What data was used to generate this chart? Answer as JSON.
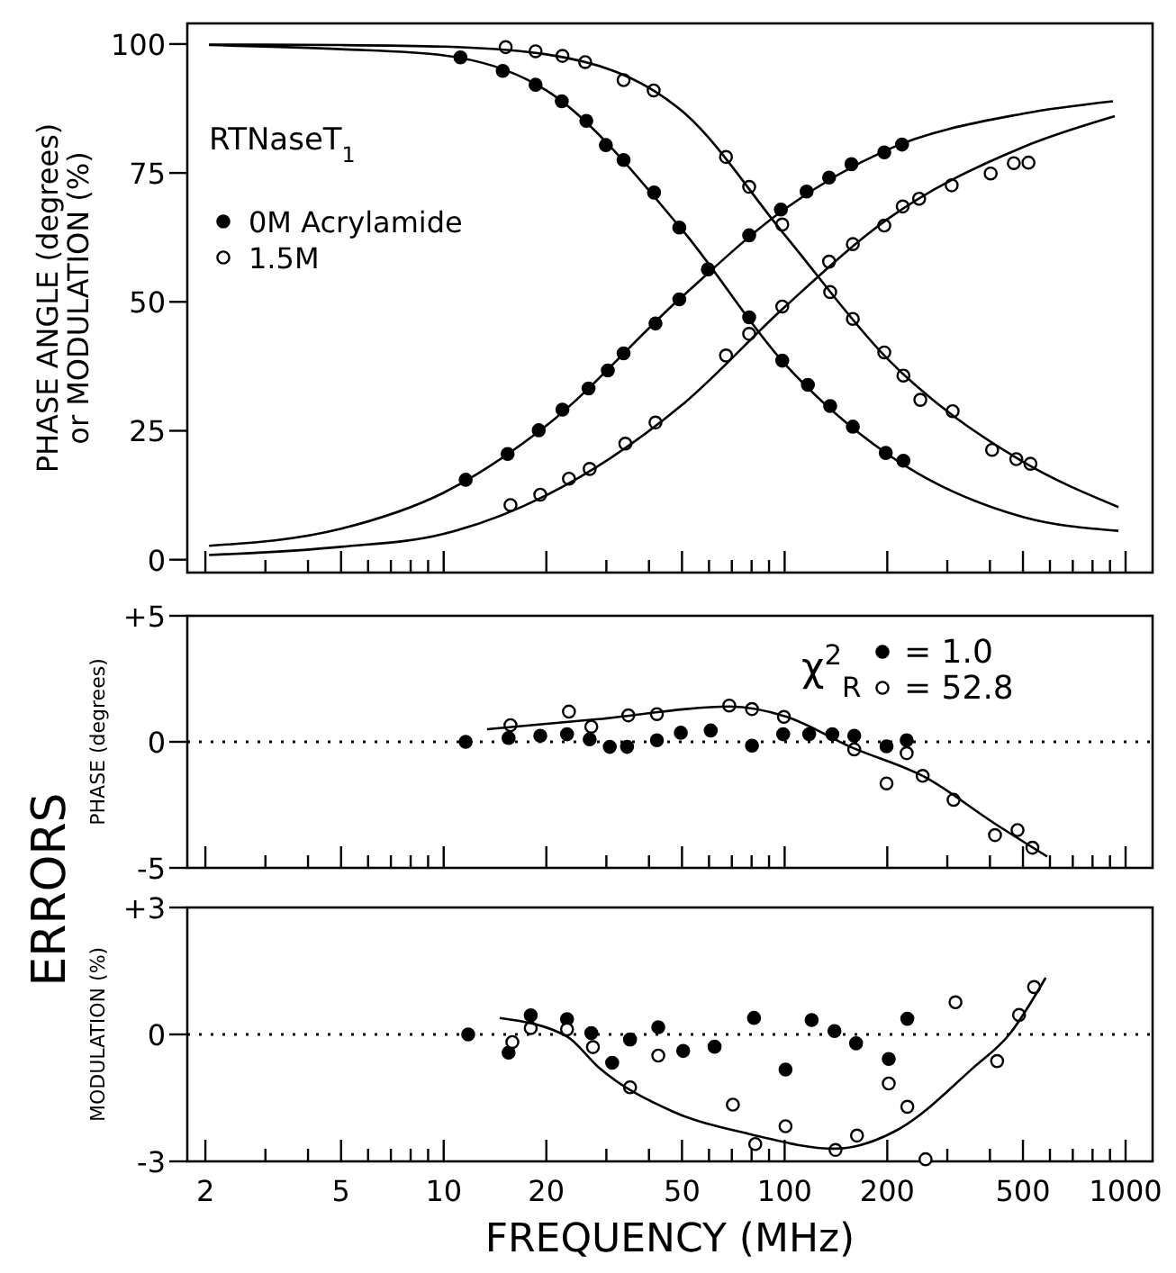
{
  "chart_data": [
    {
      "type": "scatter",
      "ylabel": "PHASE ANGLE (degrees)\nor MODULATION (%)",
      "legend_title": "RTNaseT$_{1}$",
      "legend": "left",
      "marker": "circle",
      "tick_labels": "y",
      "grid": false,
      "log": "x",
      "xlim": [
        1.77,
        1200
      ],
      "xticks": [
        2,
        {
          "value": 3,
          "label": null
        },
        {
          "value": 4,
          "label": null
        },
        5,
        {
          "value": 6,
          "label": null
        },
        {
          "value": 7,
          "label": null
        },
        {
          "value": 8,
          "label": null
        },
        {
          "value": 9,
          "label": null
        },
        10,
        20,
        {
          "value": 30,
          "label": null
        },
        {
          "value": 40,
          "label": null
        },
        50,
        {
          "value": 60,
          "label": null
        },
        {
          "value": 70,
          "label": null
        },
        {
          "value": 80,
          "label": null
        },
        {
          "value": 90,
          "label": null
        },
        100,
        200,
        {
          "value": 300,
          "label": null
        },
        {
          "value": 400,
          "label": null
        },
        500,
        {
          "value": 600,
          "label": null
        },
        {
          "value": 700,
          "label": null
        },
        {
          "value": 800,
          "label": null
        },
        {
          "value": 900,
          "label": null
        },
        1000
      ],
      "ylim": [
        -2.5,
        104
      ],
      "yticks": [
        0,
        25,
        50,
        75,
        100
      ],
      "series": [
        {
          "name": "0M Acrylamide",
          "color": "#000000",
          "x": [
            11.6,
            15.4,
            19,
            22.3,
            26.6,
            30.3,
            33.7,
            41.8,
            49.1,
            59.6,
            78.7,
            97.5,
            116,
            135,
            157,
            196,
            221
          ],
          "values": [
            15.5,
            20.5,
            25.1,
            29.1,
            33.2,
            36.7,
            40,
            45.8,
            50.5,
            56.3,
            62.9,
            67.9,
            71.4,
            74.1,
            76.7,
            79,
            80.5
          ]
        },
        {
          "color": "#000000",
          "x": [
            11.2,
            14.9,
            18.6,
            22.2,
            26.2,
            29.9,
            33.7,
            41.4,
            49.1,
            59.6,
            78.7,
            98.4,
            117,
            136,
            158.5,
            198,
            223
          ],
          "values": [
            97.4,
            94.8,
            92.1,
            88.9,
            85.1,
            80.4,
            77.5,
            71.2,
            64.4,
            56.3,
            47,
            38.6,
            33.9,
            29.8,
            25.8,
            20.7,
            19.2
          ]
        },
        {
          "name": "1.5M",
          "color": "#ffffff",
          "x": [
            15.7,
            19.2,
            23.3,
            26.8,
            34.1,
            41.8,
            67.3,
            78.7,
            98.4,
            135,
            158.5,
            196,
            222,
            248,
            309,
            402,
            470,
            519
          ],
          "values": [
            10.6,
            12.6,
            15.7,
            17.6,
            22.5,
            26.6,
            39.6,
            43.8,
            49.1,
            57.8,
            61.2,
            64.8,
            68.5,
            70,
            72.6,
            74.9,
            76.9,
            77
          ]
        },
        {
          "color": "#ffffff",
          "x": [
            15.2,
            18.6,
            22.3,
            26,
            33.7,
            41.3,
            67.3,
            78.7,
            98.4,
            136,
            158.5,
            196,
            223,
            250,
            311,
            406,
            478,
            526
          ],
          "values": [
            99.4,
            98.6,
            97.7,
            96.5,
            93,
            91,
            78.1,
            72.3,
            65,
            51.9,
            46.7,
            40.2,
            35.7,
            31,
            28.8,
            21.3,
            19.5,
            18.6
          ]
        },
        {
          "type": "line",
          "marker": "none",
          "color": "#000000",
          "x": [
            2.05,
            5,
            10,
            20,
            50,
            100,
            200,
            500,
            918
          ],
          "values": [
            2.7,
            6,
            13,
            26,
            51,
            68,
            79.5,
            86.5,
            88.9
          ]
        },
        {
          "type": "line",
          "marker": "none",
          "color": "#000000",
          "x": [
            2.05,
            5,
            10,
            20,
            50,
            100,
            200,
            500,
            953
          ],
          "values": [
            99.8,
            99,
            97.8,
            91,
            64,
            38,
            20.5,
            8.3,
            5.6
          ]
        },
        {
          "type": "line",
          "marker": "none",
          "color": "#000000",
          "x": [
            2.05,
            5,
            10,
            20,
            50,
            100,
            200,
            500,
            930
          ],
          "values": [
            0.9,
            2.5,
            5,
            12.5,
            30,
            49,
            66,
            80,
            86
          ]
        },
        {
          "type": "line",
          "marker": "none",
          "color": "#000000",
          "x": [
            2.05,
            5,
            10,
            20,
            50,
            100,
            200,
            500,
            953
          ],
          "values": [
            99.9,
            99.8,
            99.5,
            98,
            87,
            63,
            39,
            19,
            10.2
          ]
        }
      ]
    },
    {
      "type": "scatter",
      "ylabel": "PHASE (degrees)",
      "legend_title": "χ$^{2}$$_{R}$",
      "legend": "top right",
      "marker": "circle",
      "tick_labels": "y",
      "grid": false,
      "log": "x",
      "annotations": [
        "ERRORS"
      ],
      "xlim": [
        1.77,
        1200
      ],
      "xticks": [
        2,
        {
          "value": 3,
          "label": null
        },
        {
          "value": 4,
          "label": null
        },
        5,
        {
          "value": 6,
          "label": null
        },
        {
          "value": 7,
          "label": null
        },
        {
          "value": 8,
          "label": null
        },
        {
          "value": 9,
          "label": null
        },
        10,
        20,
        {
          "value": 30,
          "label": null
        },
        {
          "value": 40,
          "label": null
        },
        50,
        {
          "value": 60,
          "label": null
        },
        {
          "value": 70,
          "label": null
        },
        {
          "value": 80,
          "label": null
        },
        {
          "value": 90,
          "label": null
        },
        100,
        200,
        {
          "value": 300,
          "label": null
        },
        {
          "value": 400,
          "label": null
        },
        500,
        {
          "value": 600,
          "label": null
        },
        {
          "value": 700,
          "label": null
        },
        {
          "value": 800,
          "label": null
        },
        {
          "value": 900,
          "label": null
        },
        1000
      ],
      "ylim": [
        -5,
        5
      ],
      "yticks": [
        {
          "value": 5,
          "label": "+5"
        },
        0,
        -5
      ],
      "ref_lines": [
        {
          "axis": "y",
          "value": 0,
          "line_style": "dotted"
        }
      ],
      "series": [
        {
          "name": "= 1.0",
          "color": "#000000",
          "x": [
            11.6,
            15.5,
            19.2,
            23,
            26.8,
            30.7,
            34.5,
            42.2,
            49.6,
            60.7,
            80.2,
            99,
            118,
            138,
            160,
            199,
            228
          ],
          "values": [
            0,
            0.15,
            0.24,
            0.3,
            0.1,
            -0.2,
            -0.2,
            0.06,
            0.36,
            0.45,
            -0.15,
            0.3,
            0.3,
            0.3,
            0.24,
            -0.18,
            0.06
          ]
        },
        {
          "name": "= 52.8",
          "color": "#ffffff",
          "x": [
            15.7,
            23.3,
            27.1,
            34.8,
            42.2,
            68.8,
            80.2,
            99.5,
            160,
            199,
            228,
            254,
            313,
            414,
            482,
            533
          ],
          "values": [
            0.66,
            1.2,
            0.6,
            1.05,
            1.1,
            1.44,
            1.3,
            0.99,
            -0.3,
            -1.65,
            -0.45,
            -1.35,
            -2.3,
            -3.7,
            -3.5,
            -4.2
          ]
        },
        {
          "type": "line",
          "marker": "none",
          "color": "#000000",
          "x": [
            13.4,
            28.4,
            69,
            101,
            156,
            258,
            414,
            589
          ],
          "values": [
            0.5,
            0.9,
            1.4,
            1,
            -0.2,
            -1.4,
            -3.25,
            -4.55
          ]
        }
      ]
    },
    {
      "type": "scatter",
      "ylabel": "MODULATION (%)",
      "xlabel": "FREQUENCY (MHz)",
      "marker": "circle",
      "grid": false,
      "log": "x",
      "xlim": [
        1.77,
        1200
      ],
      "xticks": [
        2,
        {
          "value": 3,
          "label": null
        },
        {
          "value": 4,
          "label": null
        },
        5,
        {
          "value": 6,
          "label": null
        },
        {
          "value": 7,
          "label": null
        },
        {
          "value": 8,
          "label": null
        },
        {
          "value": 9,
          "label": null
        },
        10,
        20,
        {
          "value": 30,
          "label": null
        },
        {
          "value": 40,
          "label": null
        },
        50,
        {
          "value": 60,
          "label": null
        },
        {
          "value": 70,
          "label": null
        },
        {
          "value": 80,
          "label": null
        },
        {
          "value": 90,
          "label": null
        },
        100,
        200,
        {
          "value": 300,
          "label": null
        },
        {
          "value": 400,
          "label": null
        },
        500,
        {
          "value": 600,
          "label": null
        },
        {
          "value": 700,
          "label": null
        },
        {
          "value": 800,
          "label": null
        },
        {
          "value": 900,
          "label": null
        },
        1000
      ],
      "ylim": [
        -3,
        3
      ],
      "yticks": [
        {
          "value": 3,
          "label": "+3"
        },
        0,
        -3
      ],
      "ref_lines": [
        {
          "axis": "y",
          "value": 0,
          "line_style": "dotted"
        }
      ],
      "series": [
        {
          "color": "#000000",
          "x": [
            11.8,
            15.5,
            18,
            23,
            27.1,
            31.2,
            35.2,
            42.6,
            50.4,
            62.3,
            81.3,
            100.6,
            120,
            140,
            162,
            202,
            229
          ],
          "values": [
            0,
            -0.43,
            0.45,
            0.36,
            0.03,
            -0.67,
            -0.12,
            0.17,
            -0.39,
            -0.29,
            0.39,
            -0.83,
            0.34,
            0.08,
            -0.21,
            -0.58,
            0.37
          ]
        },
        {
          "color": "#ffffff",
          "x": [
            15.9,
            18,
            23,
            27.4,
            35.2,
            42.6,
            70.5,
            82,
            100.6,
            141,
            163,
            202,
            229,
            259,
            317,
            420,
            487,
            539
          ],
          "values": [
            -0.18,
            0.15,
            0.12,
            -0.3,
            -1.25,
            -0.5,
            -1.66,
            -2.59,
            -2.17,
            -2.73,
            -2.39,
            -1.16,
            -1.71,
            -2.95,
            0.76,
            -0.63,
            0.46,
            1.12
          ]
        },
        {
          "type": "line",
          "marker": "none",
          "color": "#000000",
          "x": [
            14.6,
            23,
            28.4,
            47.2,
            78.4,
            141,
            215,
            356,
            456,
            583
          ],
          "values": [
            0.39,
            -0.05,
            -0.77,
            -1.83,
            -2.35,
            -2.7,
            -2.25,
            -0.8,
            0,
            1.34
          ]
        }
      ]
    }
  ]
}
